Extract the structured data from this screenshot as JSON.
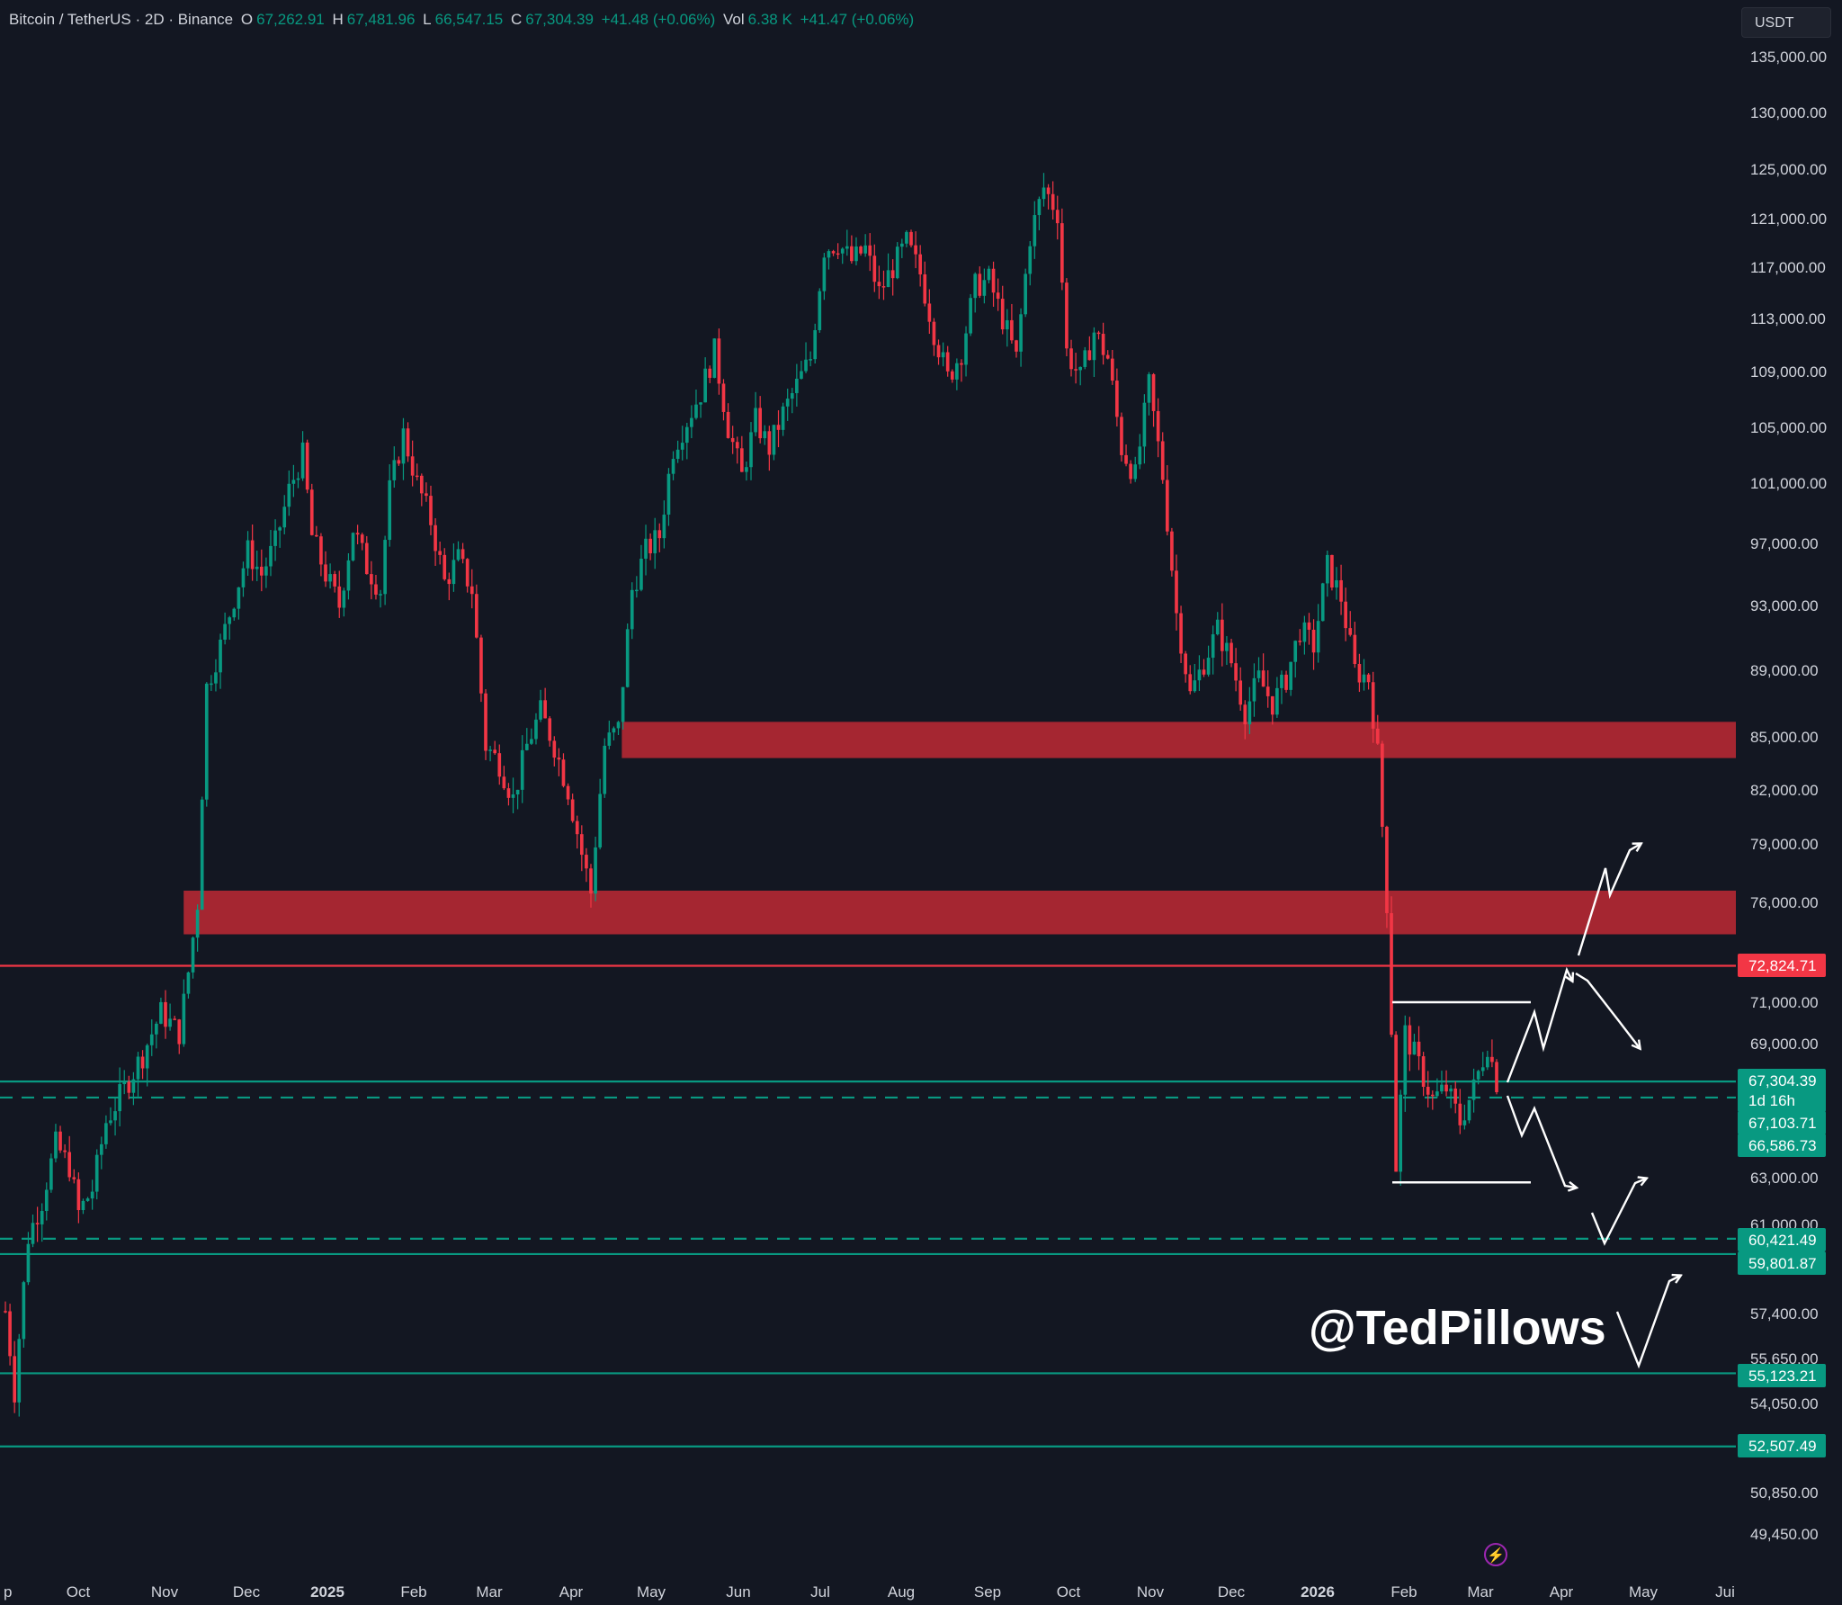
{
  "header": {
    "symbol": "Bitcoin / TetherUS · 2D · Binance",
    "o_label": "O",
    "o_value": "67,262.91",
    "h_label": "H",
    "h_value": "67,481.96",
    "l_label": "L",
    "l_value": "66,547.15",
    "c_label": "C",
    "c_value": "67,304.39",
    "change": "+41.48 (+0.06%)",
    "vol_label": "Vol",
    "vol_value": "6.38 K",
    "vol_change": "+41.47 (+0.06%)"
  },
  "currency": "USDT",
  "watermark": "@TedPillows",
  "colors": {
    "background": "#131722",
    "up": "#089981",
    "down": "#f23645",
    "zone": "#b22833",
    "resistance_line": "#f23645",
    "support_line": "#089981",
    "arrows": "#ffffff"
  },
  "chart_data": {
    "type": "candlestick",
    "timeframe": "2D",
    "y_axis_ticks": [
      "135,000.00",
      "130,000.00",
      "125,000.00",
      "121,000.00",
      "117,000.00",
      "113,000.00",
      "109,000.00",
      "105,000.00",
      "101,000.00",
      "97,000.00",
      "93,000.00",
      "89,000.00",
      "85,000.00",
      "82,000.00",
      "79,000.00",
      "76,000.00",
      "71,000.00",
      "69,000.00",
      "63,000.00",
      "61,000.00",
      "57,400.00",
      "55,650.00",
      "54,050.00",
      "50,850.00",
      "49,450.00"
    ],
    "x_axis_ticks": [
      "p",
      "Oct",
      "Nov",
      "Dec",
      "2025",
      "Feb",
      "Mar",
      "Apr",
      "May",
      "Jun",
      "Jul",
      "Aug",
      "Sep",
      "Oct",
      "Nov",
      "Dec",
      "2026",
      "Feb",
      "Mar",
      "Apr",
      "May",
      "Jui"
    ],
    "price_labels": [
      {
        "text": "72,824.71",
        "value": 72824.71,
        "kind": "resistance"
      },
      {
        "text": "67,304.39",
        "value": 67304.39,
        "kind": "last"
      },
      {
        "text": "1d 16h",
        "kind": "countdown"
      },
      {
        "text": "67,103.71",
        "value": 67103.71,
        "kind": "level"
      },
      {
        "text": "66,586.73",
        "value": 66586.73,
        "kind": "level"
      },
      {
        "text": "60,421.49",
        "value": 60421.49,
        "kind": "level"
      },
      {
        "text": "59,801.87",
        "value": 59801.87,
        "kind": "support"
      },
      {
        "text": "55,123.21",
        "value": 55123.21,
        "kind": "support"
      },
      {
        "text": "52,507.49",
        "value": 52507.49,
        "kind": "support"
      }
    ],
    "zones": [
      {
        "from": 83800,
        "to": 85900,
        "start": "2025-04-20"
      },
      {
        "from": 74400,
        "to": 76600,
        "start": "2024-11-08"
      }
    ],
    "horizontal_lines": [
      {
        "value": 72824.71,
        "style": "solid",
        "color": "red"
      },
      {
        "value": 67304.39,
        "style": "solid",
        "color": "green"
      },
      {
        "value": 66586.73,
        "style": "dashed",
        "color": "green"
      },
      {
        "value": 60421.49,
        "style": "dashed",
        "color": "green"
      },
      {
        "value": 59801.87,
        "style": "solid",
        "color": "green"
      },
      {
        "value": 55123.21,
        "style": "solid",
        "color": "green"
      },
      {
        "value": 52507.49,
        "style": "solid",
        "color": "green"
      }
    ],
    "range_box": {
      "top": 71000,
      "bottom": 62800,
      "start": "2026-02-01",
      "end": "2026-03-08"
    },
    "close_path": [
      [
        0,
        57500
      ],
      [
        2,
        54500
      ],
      [
        5,
        60500
      ],
      [
        8,
        62000
      ],
      [
        11,
        64500
      ],
      [
        14,
        63500
      ],
      [
        16,
        61500
      ],
      [
        19,
        62500
      ],
      [
        22,
        65500
      ],
      [
        26,
        67000
      ],
      [
        30,
        68500
      ],
      [
        34,
        70500
      ],
      [
        38,
        69500
      ],
      [
        40,
        72500
      ],
      [
        42,
        76000
      ],
      [
        44,
        88000
      ],
      [
        47,
        90500
      ],
      [
        50,
        93500
      ],
      [
        53,
        96500
      ],
      [
        56,
        95000
      ],
      [
        59,
        97000
      ],
      [
        62,
        100500
      ],
      [
        65,
        103000
      ],
      [
        67,
        97500
      ],
      [
        70,
        95000
      ],
      [
        73,
        93000
      ],
      [
        76,
        98000
      ],
      [
        79,
        95500
      ],
      [
        82,
        94000
      ],
      [
        84,
        100500
      ],
      [
        87,
        104500
      ],
      [
        90,
        101000
      ],
      [
        93,
        98500
      ],
      [
        96,
        94500
      ],
      [
        99,
        96000
      ],
      [
        102,
        94000
      ],
      [
        105,
        84500
      ],
      [
        108,
        83500
      ],
      [
        111,
        81500
      ],
      [
        114,
        84500
      ],
      [
        117,
        86500
      ],
      [
        120,
        84500
      ],
      [
        123,
        82000
      ],
      [
        126,
        78500
      ],
      [
        128,
        76500
      ],
      [
        131,
        84500
      ],
      [
        134,
        85500
      ],
      [
        137,
        94000
      ],
      [
        140,
        96500
      ],
      [
        143,
        97500
      ],
      [
        146,
        103500
      ],
      [
        149,
        105500
      ],
      [
        152,
        107500
      ],
      [
        155,
        110500
      ],
      [
        158,
        105000
      ],
      [
        161,
        101500
      ],
      [
        164,
        105500
      ],
      [
        167,
        103500
      ],
      [
        170,
        106000
      ],
      [
        173,
        108000
      ],
      [
        176,
        110000
      ],
      [
        179,
        118500
      ],
      [
        182,
        119000
      ],
      [
        185,
        117500
      ],
      [
        188,
        118500
      ],
      [
        191,
        115000
      ],
      [
        194,
        117000
      ],
      [
        197,
        119000
      ],
      [
        200,
        116500
      ],
      [
        203,
        112000
      ],
      [
        206,
        108500
      ],
      [
        209,
        110500
      ],
      [
        212,
        115500
      ],
      [
        215,
        116000
      ],
      [
        218,
        113000
      ],
      [
        221,
        110000
      ],
      [
        224,
        119500
      ],
      [
        227,
        123500
      ],
      [
        230,
        121500
      ],
      [
        232,
        110500
      ],
      [
        235,
        108500
      ],
      [
        238,
        112000
      ],
      [
        241,
        110000
      ],
      [
        244,
        103500
      ],
      [
        247,
        101500
      ],
      [
        250,
        108000
      ],
      [
        253,
        101500
      ],
      [
        256,
        92500
      ],
      [
        259,
        87500
      ],
      [
        262,
        89500
      ],
      [
        265,
        91500
      ],
      [
        268,
        89500
      ],
      [
        271,
        86500
      ],
      [
        274,
        88500
      ],
      [
        277,
        87000
      ],
      [
        280,
        88500
      ],
      [
        283,
        91500
      ],
      [
        286,
        90500
      ],
      [
        289,
        95500
      ],
      [
        292,
        93500
      ],
      [
        295,
        89000
      ],
      [
        298,
        88500
      ],
      [
        300,
        84000
      ],
      [
        302,
        76000
      ],
      [
        304,
        63500
      ],
      [
        306,
        69500
      ],
      [
        309,
        68000
      ],
      [
        312,
        66500
      ],
      [
        315,
        67000
      ],
      [
        318,
        65500
      ],
      [
        321,
        67000
      ],
      [
        324,
        69000
      ],
      [
        326,
        67300
      ]
    ],
    "scenario_arrows": "hand-drawn projections: up to ~72,800 then ~79,000 or reject to ~69,000; down to ~63,000 / ~61,000 / ~57,000 then bounce"
  }
}
